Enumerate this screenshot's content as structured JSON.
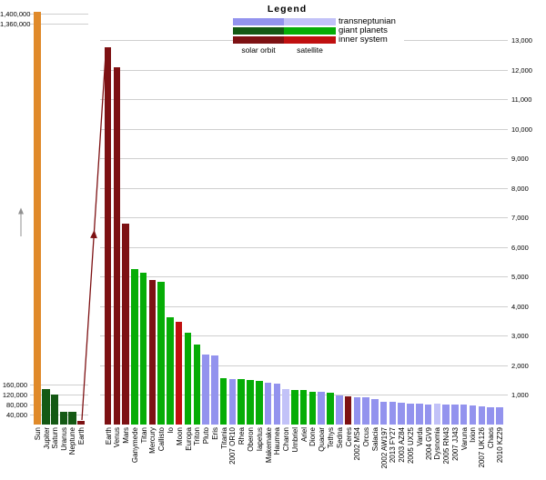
{
  "legend": {
    "title": "Legend",
    "rows": [
      {
        "label": "transneptunian",
        "solar_color": "#9393ee",
        "satellite_color": "#c2c2f8"
      },
      {
        "label": "giant planets",
        "solar_color": "#145914",
        "satellite_color": "#06ad06"
      },
      {
        "label": "inner system",
        "solar_color": "#7d1113",
        "satellite_color": "#c01010"
      }
    ],
    "col_labels": [
      "solar orbit",
      "satellite"
    ]
  },
  "palette": {
    "sun_orange": "#e08a2a",
    "giant_solar": "#145914",
    "giant_satellite": "#06ad06",
    "inner_solar": "#7d1113",
    "inner_satellite": "#c01010",
    "tno_solar": "#9393ee",
    "tno_satellite": "#c2c2f8",
    "gridline": "#cfcfcf",
    "break_arrow": "#909090",
    "connector_line": "#7d1113"
  },
  "icons": {
    "axis_break": "up-arrow-icon",
    "earth_connector": "earth-scale-connector-arrow-icon"
  },
  "chart_data": [
    {
      "type": "bar",
      "panel": "left",
      "title": "",
      "xlabel": "",
      "ylabel": "",
      "axis_break": true,
      "ytick_labels_top": [
        "1,400,000",
        "1,360,000"
      ],
      "ytick_values_top": [
        1400000,
        1360000
      ],
      "ytick_labels_bottom": [
        "160,000",
        "120,000",
        "80,000",
        "40,000"
      ],
      "ytick_values_bottom": [
        160000,
        120000,
        80000,
        40000
      ],
      "grid": true,
      "categories": [
        "Sun",
        "Jupiter",
        "Saturn",
        "Uranus",
        "Neptune",
        "Earth"
      ],
      "values": [
        1392000,
        142984,
        120536,
        51118,
        49528,
        12756
      ],
      "colors": [
        "sun_orange",
        "giant_solar",
        "giant_solar",
        "giant_solar",
        "giant_solar",
        "inner_solar"
      ]
    },
    {
      "type": "bar",
      "panel": "right",
      "title": "",
      "xlabel": "",
      "ylabel": "",
      "ylim": [
        0,
        13000
      ],
      "ytick_step": 1000,
      "ytick_labels": [
        "1,000",
        "2,000",
        "3,000",
        "4,000",
        "5,000",
        "6,000",
        "7,000",
        "8,000",
        "9,000",
        "10,000",
        "11,000",
        "12,000",
        "13,000"
      ],
      "grid": true,
      "categories": [
        "Earth",
        "Venus",
        "Mars",
        "Ganymede",
        "Titan",
        "Mercury",
        "Callisto",
        "Io",
        "Moon",
        "Europa",
        "Triton",
        "Pluto",
        "Eris",
        "Titania",
        "2007 OR10",
        "Rhea",
        "Oberon",
        "Iapetus",
        "Makemake",
        "Haumea",
        "Charon",
        "Umbriel",
        "Ariel",
        "Dione",
        "Quaoar",
        "Tethys",
        "Sedna",
        "Ceres",
        "2002 MS4",
        "Orcus",
        "Salacia",
        "2002 AW197",
        "2013 FY27",
        "2003 AZ84",
        "2005 UX25",
        "Varda",
        "2004 GV9",
        "Dysnomia",
        "2005 RN43",
        "2007 JJ43",
        "Varuna",
        "Ixion",
        "2007 UK126",
        "Chaos",
        "2010 KZ29"
      ],
      "values": [
        12756,
        12104,
        6792,
        5268,
        5152,
        4879,
        4821,
        3643,
        3475,
        3122,
        2707,
        2376,
        2326,
        1578,
        1535,
        1527,
        1523,
        1470,
        1430,
        1400,
        1212,
        1169,
        1158,
        1123,
        1110,
        1062,
        995,
        946,
        934,
        917,
        854,
        768,
        760,
        727,
        697,
        705,
        680,
        700,
        679,
        670,
        668,
        650,
        625,
        600,
        600
      ],
      "colors": [
        "inner_solar",
        "inner_solar",
        "inner_solar",
        "giant_satellite",
        "giant_satellite",
        "inner_solar",
        "giant_satellite",
        "giant_satellite",
        "inner_satellite",
        "giant_satellite",
        "giant_satellite",
        "tno_solar",
        "tno_solar",
        "giant_satellite",
        "tno_solar",
        "giant_satellite",
        "giant_satellite",
        "giant_satellite",
        "tno_solar",
        "tno_solar",
        "tno_satellite",
        "giant_satellite",
        "giant_satellite",
        "giant_satellite",
        "tno_solar",
        "giant_satellite",
        "tno_solar",
        "inner_solar",
        "tno_solar",
        "tno_solar",
        "tno_solar",
        "tno_solar",
        "tno_solar",
        "tno_solar",
        "tno_solar",
        "tno_solar",
        "tno_solar",
        "tno_satellite",
        "tno_solar",
        "tno_solar",
        "tno_solar",
        "tno_solar",
        "tno_solar",
        "tno_solar",
        "tno_solar"
      ]
    }
  ]
}
